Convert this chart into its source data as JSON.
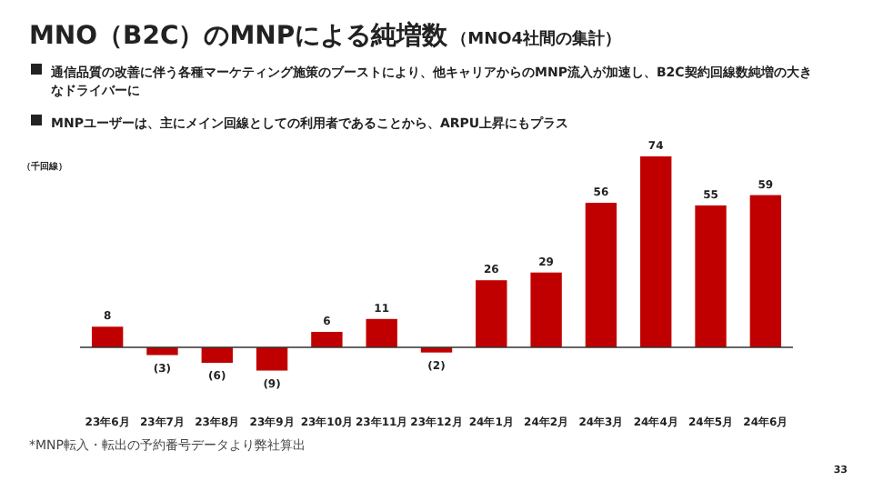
{
  "chart_data": {
    "type": "bar",
    "title": "MNO（B2C）のMNPによる純増数",
    "subtitle": "（MNO4社間の集計）",
    "ylabel": "（千回線）",
    "annotations": [
      "通信品質の改善に伴う各種マーケティング施策のブーストにより、他キャリアからのMNP流入が加速し、B2C契約回線数純増の大きなドライバーに",
      "MNPユーザーは、主にメイン回線としての利用者であることから、ARPU上昇にもプラス",
      "*MNP転入・転出の予約番号データより弊社算出",
      "33"
    ],
    "categories": [
      "23年6月",
      "23年7月",
      "23年8月",
      "23年9月",
      "23年10月",
      "23年11月",
      "23年12月",
      "24年1月",
      "24年2月",
      "24年3月",
      "24年4月",
      "24年5月",
      "24年6月"
    ],
    "values": [
      8,
      -3,
      -6,
      -9,
      6,
      11,
      -2,
      26,
      29,
      56,
      74,
      55,
      59
    ],
    "value_labels": [
      "8",
      "(3)",
      "(6)",
      "(9)",
      "6",
      "11",
      "(2)",
      "26",
      "29",
      "56",
      "74",
      "55",
      "59"
    ],
    "color": "#c00000"
  }
}
